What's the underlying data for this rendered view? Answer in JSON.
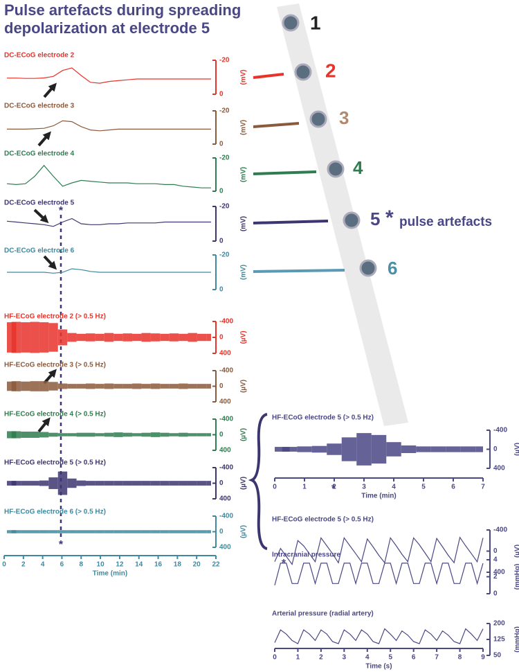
{
  "title": "Pulse artefacts during spreading depolarization at electrode 5",
  "electrodes": [
    {
      "label": "1",
      "color": "#222222"
    },
    {
      "label": "2",
      "color": "#e8332a"
    },
    {
      "label": "3",
      "color": "#b08a70"
    },
    {
      "label": "4",
      "color": "#2e7d4f"
    },
    {
      "label": "5",
      "color": "#4a4785",
      "star": "*",
      "annotation": "pulse artefacts"
    },
    {
      "label": "6",
      "color": "#4d8fa8"
    }
  ],
  "chart_data": [
    {
      "type": "line",
      "title": "DC-ECoG electrode 2",
      "y_label": "(mV)",
      "color": "#e8332a",
      "xlim": [
        0,
        22
      ],
      "ylim": [
        0,
        -20
      ],
      "yticks": [
        -20,
        0
      ],
      "x": [
        0,
        1,
        2,
        3,
        4,
        5,
        6,
        7,
        8,
        9,
        10,
        11,
        12,
        13,
        14,
        15,
        16,
        17,
        18,
        19,
        20,
        21,
        22
      ],
      "values": [
        -9.5,
        -9.5,
        -9.3,
        -9.3,
        -9.6,
        -10.5,
        -14,
        -15.5,
        -11,
        -7,
        -6.5,
        -7.5,
        -8,
        -8.5,
        -9,
        -9,
        -9,
        -9,
        -9,
        -9,
        -9,
        -9,
        -9
      ]
    },
    {
      "type": "line",
      "title": "DC-ECoG electrode 3",
      "y_label": "(mV)",
      "color": "#8b5a3c",
      "xlim": [
        0,
        22
      ],
      "ylim": [
        0,
        -20
      ],
      "yticks": [
        -20,
        0
      ],
      "x": [
        0,
        1,
        2,
        3,
        4,
        5,
        6,
        7,
        8,
        9,
        10,
        11,
        12,
        13,
        14,
        15,
        16,
        17,
        18,
        19,
        20,
        21,
        22
      ],
      "values": [
        -9,
        -9,
        -9,
        -9.2,
        -9.5,
        -11,
        -14,
        -13.5,
        -10.5,
        -8.5,
        -8,
        -8.5,
        -9,
        -9,
        -9,
        -9,
        -9,
        -9,
        -9,
        -9,
        -9,
        -9,
        -9
      ]
    },
    {
      "type": "line",
      "title": "DC-ECoG electrode 4",
      "y_label": "(mV)",
      "color": "#2e7d4f",
      "xlim": [
        0,
        22
      ],
      "ylim": [
        0,
        -20
      ],
      "yticks": [
        -20,
        0
      ],
      "x": [
        0,
        1,
        2,
        3,
        4,
        5,
        6,
        7,
        8,
        9,
        10,
        11,
        12,
        13,
        14,
        15,
        16,
        17,
        18,
        19,
        20,
        21,
        22
      ],
      "values": [
        -4.5,
        -4,
        -4.5,
        -9,
        -15.5,
        -9,
        -3,
        -5,
        -6.5,
        -6,
        -5.5,
        -5,
        -5,
        -5,
        -4.5,
        -4.5,
        -4.5,
        -4,
        -4,
        -3,
        -2.5,
        -2,
        -2
      ]
    },
    {
      "type": "line",
      "title": "DC-ECoG electrode 5",
      "y_label": "(mV)",
      "color": "#3c3670",
      "xlim": [
        0,
        22
      ],
      "ylim": [
        0,
        -20
      ],
      "yticks": [
        -20,
        0
      ],
      "annotation": "*",
      "x": [
        0,
        1,
        2,
        3,
        4,
        5,
        6,
        7,
        8,
        9,
        10,
        11,
        12,
        13,
        14,
        15,
        16,
        17,
        18,
        19,
        20,
        21,
        22
      ],
      "values": [
        -11.5,
        -11,
        -10.5,
        -10,
        -9.5,
        -8.5,
        -11,
        -13,
        -10,
        -9.5,
        -9.5,
        -10,
        -10,
        -10.5,
        -10.5,
        -10.5,
        -10.5,
        -11,
        -11,
        -11,
        -11,
        -11,
        -11
      ]
    },
    {
      "type": "line",
      "title": "DC-ECoG electrode 6",
      "y_label": "(mV)",
      "color": "#3d8aa0",
      "xlim": [
        0,
        22
      ],
      "ylim": [
        0,
        -20
      ],
      "yticks": [
        -20,
        0
      ],
      "x": [
        0,
        1,
        2,
        3,
        4,
        5,
        6,
        7,
        8,
        9,
        10,
        11,
        12,
        13,
        14,
        15,
        16,
        17,
        18,
        19,
        20,
        21,
        22
      ],
      "values": [
        -10,
        -10,
        -10,
        -10,
        -10,
        -9.5,
        -10,
        -12,
        -11.5,
        -10.5,
        -10,
        -10,
        -10,
        -10,
        -10,
        -10,
        -10,
        -10,
        -10,
        -10,
        -10,
        -10,
        -10
      ]
    },
    {
      "type": "area",
      "title": "HF-ECoG electrode 2 (> 0.5 Hz)",
      "y_label": "(µV)",
      "color": "#e8332a",
      "xlim": [
        0,
        22
      ],
      "ylim": [
        400,
        -400
      ],
      "yticks": [
        -400,
        0,
        400
      ],
      "x": [
        0,
        1,
        2,
        3,
        4,
        5,
        6,
        7,
        8,
        9,
        10,
        11,
        12,
        13,
        14,
        15,
        16,
        17,
        18,
        19,
        20,
        21,
        22
      ],
      "values": [
        380,
        390,
        380,
        390,
        380,
        360,
        200,
        110,
        90,
        100,
        90,
        110,
        90,
        100,
        90,
        110,
        100,
        90,
        100,
        90,
        110,
        90,
        90
      ]
    },
    {
      "type": "area",
      "title": "HF-ECoG electrode 3 (> 0.5 Hz)",
      "y_label": "(µV)",
      "color": "#8b5a3c",
      "xlim": [
        0,
        22
      ],
      "ylim": [
        400,
        -400
      ],
      "yticks": [
        -400,
        0,
        400
      ],
      "x": [
        0,
        1,
        2,
        3,
        4,
        5,
        6,
        7,
        8,
        9,
        10,
        11,
        12,
        13,
        14,
        15,
        16,
        17,
        18,
        19,
        20,
        21,
        22
      ],
      "values": [
        120,
        130,
        120,
        130,
        130,
        110,
        70,
        60,
        60,
        70,
        60,
        70,
        60,
        60,
        70,
        60,
        70,
        60,
        60,
        70,
        60,
        60,
        60
      ]
    },
    {
      "type": "area",
      "title": "HF-ECoG electrode 4 (> 0.5 Hz)",
      "y_label": "(µV)",
      "color": "#2e7d4f",
      "xlim": [
        0,
        22
      ],
      "ylim": [
        400,
        -400
      ],
      "yticks": [
        -400,
        0,
        400
      ],
      "x": [
        0,
        1,
        2,
        3,
        4,
        5,
        6,
        7,
        8,
        9,
        10,
        11,
        12,
        13,
        14,
        15,
        16,
        17,
        18,
        19,
        20,
        21,
        22
      ],
      "values": [
        90,
        90,
        80,
        80,
        70,
        50,
        40,
        40,
        50,
        50,
        40,
        50,
        60,
        50,
        40,
        50,
        60,
        50,
        40,
        50,
        40,
        40,
        40
      ]
    },
    {
      "type": "area",
      "title": "HF-ECoG electrode 5 (> 0.5 Hz)",
      "y_label": "(µV)",
      "color": "#3c3670",
      "xlim": [
        0,
        22
      ],
      "ylim": [
        400,
        -400
      ],
      "yticks": [
        -400,
        0,
        400
      ],
      "annotation": "*",
      "x": [
        0,
        1,
        2,
        3,
        4,
        5,
        6,
        7,
        8,
        9,
        10,
        11,
        12,
        13,
        14,
        15,
        16,
        17,
        18,
        19,
        20,
        21,
        22
      ],
      "values": [
        60,
        60,
        60,
        60,
        70,
        150,
        300,
        120,
        70,
        60,
        60,
        60,
        60,
        60,
        60,
        60,
        60,
        60,
        60,
        60,
        60,
        60,
        60
      ]
    },
    {
      "type": "area",
      "title": "HF-ECoG electrode 6 (> 0.5 Hz)",
      "y_label": "(µV)",
      "color": "#3d8aa0",
      "xlim": [
        0,
        22
      ],
      "ylim": [
        400,
        -400
      ],
      "yticks": [
        -400,
        0,
        400
      ],
      "xticks": [
        0,
        2,
        4,
        6,
        8,
        10,
        12,
        14,
        16,
        18,
        20,
        22
      ],
      "x_label": "Time (min)",
      "x": [
        0,
        1,
        2,
        3,
        4,
        5,
        6,
        7,
        8,
        9,
        10,
        11,
        12,
        13,
        14,
        15,
        16,
        17,
        18,
        19,
        20,
        21,
        22
      ],
      "values": [
        40,
        40,
        40,
        40,
        40,
        40,
        40,
        40,
        40,
        40,
        40,
        40,
        40,
        40,
        40,
        40,
        40,
        40,
        40,
        40,
        40,
        40,
        40
      ]
    },
    {
      "type": "area",
      "title": "HF-ECoG electrode 5 (> 0.5 Hz)",
      "y_label": "(µV)",
      "color": "#4a4785",
      "xlim": [
        0,
        7
      ],
      "ylim": [
        400,
        -400
      ],
      "yticks": [
        -400,
        0,
        400
      ],
      "annotation": "*",
      "xticks": [
        0,
        1,
        2,
        3,
        4,
        5,
        6,
        7
      ],
      "x_label": "Time (min)",
      "x": [
        0,
        0.5,
        1,
        1.5,
        2,
        2.5,
        3,
        3.5,
        4,
        4.5,
        5,
        5.5,
        6,
        6.5,
        7
      ],
      "values": [
        50,
        50,
        60,
        70,
        120,
        250,
        340,
        300,
        150,
        80,
        60,
        60,
        60,
        60,
        60
      ]
    },
    {
      "type": "line",
      "title": "HF-ECoG electrode 5 (> 0.5 Hz)",
      "y_label": "(µV)",
      "color": "#4a4785",
      "xlim": [
        0,
        9
      ],
      "ylim": [
        400,
        -400
      ],
      "yticks": [
        -400,
        0,
        400
      ],
      "annotation": "*",
      "x": [
        0,
        0.25,
        0.5,
        0.75,
        1,
        1.25,
        1.5,
        1.75,
        2,
        2.25,
        2.5,
        2.75,
        3,
        3.25,
        3.5,
        3.75,
        4,
        4.25,
        4.5,
        4.75,
        5,
        5.25,
        5.5,
        5.75,
        6,
        6.25,
        6.5,
        6.75,
        7,
        7.25,
        7.5,
        7.75,
        8,
        8.25,
        8.5,
        8.75,
        9
      ],
      "values": [
        200,
        -50,
        100,
        250,
        -200,
        -100,
        50,
        200,
        -250,
        -100,
        50,
        220,
        -250,
        -100,
        50,
        200,
        -230,
        -80,
        80,
        220,
        -250,
        -100,
        60,
        200,
        -250,
        -120,
        40,
        200,
        -240,
        -80,
        80,
        220,
        -260,
        -100,
        50,
        200,
        -250
      ]
    },
    {
      "type": "line",
      "title": "Intracranial pressure",
      "y_label": "(mmHg)",
      "color": "#4a4785",
      "xlim": [
        0,
        9
      ],
      "ylim": [
        0,
        4
      ],
      "yticks": [
        0,
        2,
        4
      ],
      "x": [
        0,
        0.25,
        0.5,
        0.75,
        1,
        1.25,
        1.5,
        1.75,
        2,
        2.25,
        2.5,
        2.75,
        3,
        3.25,
        3.5,
        3.75,
        4,
        4.25,
        4.5,
        4.75,
        5,
        5.25,
        5.5,
        5.75,
        6,
        6.25,
        6.5,
        6.75,
        7,
        7.25,
        7.5,
        7.75,
        8,
        8.25,
        8.5,
        8.75,
        9
      ],
      "values": [
        1,
        3.6,
        3.6,
        1.2,
        1.2,
        3.6,
        3.6,
        1.2,
        3.6,
        3.6,
        1.2,
        1.2,
        3.6,
        3.6,
        1.2,
        3.6,
        3.6,
        1.2,
        1.2,
        3.6,
        3.6,
        1.2,
        3.6,
        3.6,
        1.2,
        1.2,
        3.6,
        3.6,
        1.2,
        3.6,
        3.6,
        1.2,
        1.2,
        3.6,
        3.6,
        1.2,
        3.6
      ]
    },
    {
      "type": "line",
      "title": "Arterial pressure (radial artery)",
      "y_label": "(mmHg)",
      "color": "#4a4785",
      "xlim": [
        0,
        9
      ],
      "ylim": [
        50,
        200
      ],
      "yticks": [
        50,
        125,
        200
      ],
      "xticks": [
        0,
        1,
        2,
        3,
        4,
        5,
        6,
        7,
        8,
        9
      ],
      "x_label": "Time (s)",
      "x": [
        0,
        0.25,
        0.5,
        0.75,
        1,
        1.25,
        1.5,
        1.75,
        2,
        2.25,
        2.5,
        2.75,
        3,
        3.25,
        3.5,
        3.75,
        4,
        4.25,
        4.5,
        4.75,
        5,
        5.25,
        5.5,
        5.75,
        6,
        6.25,
        6.5,
        6.75,
        7,
        7.25,
        7.5,
        7.75,
        8,
        8.25,
        8.5,
        8.75,
        9
      ],
      "values": [
        110,
        170,
        150,
        120,
        105,
        170,
        150,
        120,
        170,
        150,
        115,
        105,
        170,
        150,
        120,
        170,
        150,
        115,
        105,
        175,
        150,
        120,
        165,
        145,
        115,
        105,
        170,
        150,
        120,
        165,
        145,
        115,
        105,
        175,
        150,
        120,
        175
      ]
    }
  ]
}
